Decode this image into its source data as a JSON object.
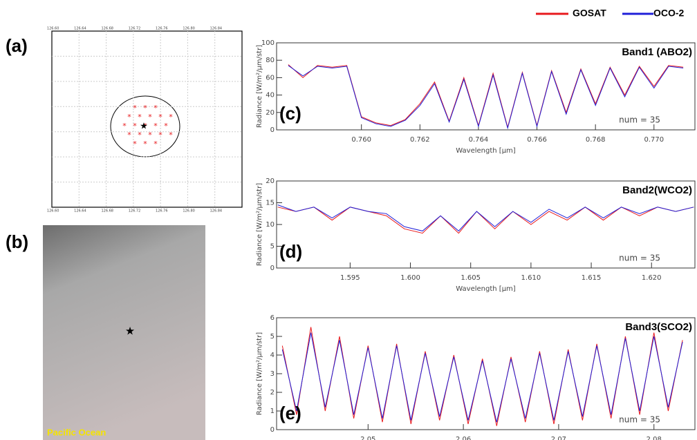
{
  "panels": {
    "a": {
      "label": "(a)",
      "xticks": [
        "126.60",
        "126.64",
        "126.68",
        "126.72",
        "126.76",
        "126.80",
        "126.84"
      ]
    },
    "b": {
      "label": "(b)",
      "caption": "Pacific Ocean"
    }
  },
  "chart_data": [
    {
      "type": "line",
      "panel_label": "(c)",
      "title": "Band1 (ABO2)",
      "annotation": "num = 35",
      "x_label": "Wavelength [μm]",
      "y_label": "Radiance [W/m²/μm/str]",
      "xlim": [
        0.7571,
        0.7714
      ],
      "ylim": [
        0,
        100
      ],
      "xticks": [
        {
          "value": 0.76,
          "label": "0.760"
        },
        {
          "value": 0.762,
          "label": "0.762"
        },
        {
          "value": 0.764,
          "label": "0.764"
        },
        {
          "value": 0.766,
          "label": "0.766"
        },
        {
          "value": 0.768,
          "label": "0.768"
        },
        {
          "value": 0.77,
          "label": "0.770"
        }
      ],
      "yticks": [
        0,
        20,
        40,
        60,
        80,
        100
      ],
      "x": [
        0.7575,
        0.758,
        0.7585,
        0.759,
        0.7595,
        0.76,
        0.7605,
        0.761,
        0.7615,
        0.762,
        0.7625,
        0.763,
        0.7635,
        0.764,
        0.7645,
        0.765,
        0.7655,
        0.766,
        0.7665,
        0.767,
        0.7675,
        0.768,
        0.7685,
        0.769,
        0.7695,
        0.77,
        0.7705,
        0.771
      ],
      "series": [
        {
          "name": "GOSAT",
          "color": "#e8191c",
          "values": [
            75,
            60,
            74,
            72,
            74,
            15,
            8,
            5,
            12,
            30,
            55,
            10,
            60,
            5,
            65,
            3,
            66,
            5,
            68,
            20,
            70,
            30,
            72,
            40,
            73,
            50,
            74,
            72
          ]
        },
        {
          "name": "OCO-2",
          "color": "#1f1fd8",
          "values": [
            74,
            62,
            73,
            71,
            73,
            14,
            7,
            4,
            11,
            28,
            53,
            9,
            58,
            4,
            63,
            2,
            65,
            4,
            67,
            18,
            69,
            28,
            71,
            38,
            72,
            48,
            73,
            71
          ]
        }
      ]
    },
    {
      "type": "line",
      "panel_label": "(d)",
      "title": "Band2(WCO2)",
      "annotation": "num = 35",
      "x_label": "Wavelength [μm]",
      "y_label": "Radiance [W/m²/μm/str]",
      "xlim": [
        1.5889,
        1.6236
      ],
      "ylim": [
        0,
        20
      ],
      "xticks": [
        1.595,
        {
          "value": 1.6,
          "label": "1.600"
        },
        1.605,
        {
          "value": 1.61,
          "label": "1.610"
        },
        1.615,
        {
          "value": 1.62,
          "label": "1.620"
        }
      ],
      "yticks": [
        0,
        5,
        10,
        15,
        20
      ],
      "x": [
        1.589,
        1.5905,
        1.592,
        1.5935,
        1.595,
        1.5965,
        1.598,
        1.5995,
        1.601,
        1.6025,
        1.604,
        1.6055,
        1.607,
        1.6085,
        1.61,
        1.6115,
        1.613,
        1.6145,
        1.616,
        1.6175,
        1.619,
        1.6205,
        1.622,
        1.6235
      ],
      "series": [
        {
          "name": "GOSAT",
          "color": "#e8191c",
          "values": [
            14,
            13,
            14,
            11,
            14,
            13,
            12,
            9,
            8,
            12,
            8,
            13,
            9,
            13,
            10,
            13,
            11,
            14,
            11,
            14,
            12,
            14,
            13,
            14
          ]
        },
        {
          "name": "OCO-2",
          "color": "#1f1fd8",
          "values": [
            14.5,
            13,
            14,
            11.5,
            14,
            13,
            12.5,
            9.5,
            8.5,
            12,
            8.5,
            13,
            9.5,
            13,
            10.5,
            13.5,
            11.5,
            14,
            11.5,
            14,
            12.5,
            14,
            13,
            14
          ]
        }
      ]
    },
    {
      "type": "line",
      "panel_label": "(e)",
      "title": "Band3(SCO2)",
      "annotation": "num = 35",
      "x_label": "Wavelength [μm]",
      "y_label": "Radiance [W/m²/μm/str]",
      "xlim": [
        2.0404,
        2.0843
      ],
      "ylim": [
        0,
        6
      ],
      "xticks": [
        2.05,
        2.06,
        2.07,
        2.08
      ],
      "yticks": [
        0,
        1,
        2,
        3,
        4,
        5,
        6
      ],
      "x": [
        2.041,
        2.0425,
        2.044,
        2.0455,
        2.047,
        2.0485,
        2.05,
        2.0515,
        2.053,
        2.0545,
        2.056,
        2.0575,
        2.059,
        2.0605,
        2.062,
        2.0635,
        2.065,
        2.0665,
        2.068,
        2.0695,
        2.071,
        2.0725,
        2.074,
        2.0755,
        2.077,
        2.0785,
        2.08,
        2.0815,
        2.083
      ],
      "series": [
        {
          "name": "GOSAT",
          "color": "#e8191c",
          "values": [
            4.5,
            0.8,
            5.5,
            1,
            5,
            0.6,
            4.5,
            0.4,
            4.6,
            0.3,
            4.2,
            0.5,
            4,
            0.3,
            3.8,
            0.2,
            3.9,
            0.4,
            4.2,
            0.3,
            4.3,
            0.5,
            4.6,
            0.6,
            5,
            0.8,
            5.2,
            1,
            4.8
          ]
        },
        {
          "name": "OCO-2",
          "color": "#1f1fd8",
          "values": [
            4.3,
            1,
            5.2,
            1.2,
            4.8,
            0.8,
            4.4,
            0.6,
            4.5,
            0.5,
            4.1,
            0.7,
            3.9,
            0.5,
            3.7,
            0.4,
            3.8,
            0.6,
            4.1,
            0.5,
            4.2,
            0.7,
            4.5,
            0.8,
            4.9,
            1,
            5,
            1.2,
            4.7
          ]
        }
      ]
    }
  ]
}
